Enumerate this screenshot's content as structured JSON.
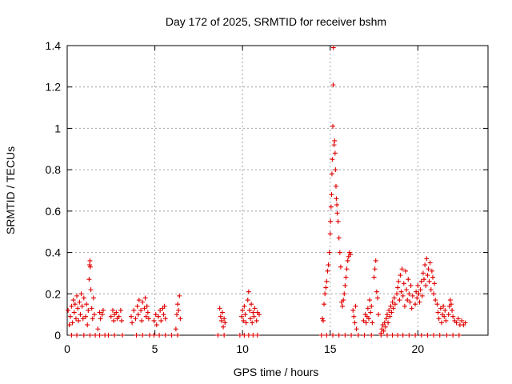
{
  "chart_data": {
    "type": "scatter",
    "title": "Day 172 of 2025, SRMTID for receiver bshm",
    "xlabel": "GPS time / hours",
    "ylabel": "SRMTID / TECUs",
    "xlim": [
      0,
      24
    ],
    "ylim": [
      0,
      1.4
    ],
    "xticks": [
      0,
      5,
      10,
      15,
      20
    ],
    "yticks": [
      0,
      0.2,
      0.4,
      0.6,
      0.8,
      1.0,
      1.2,
      1.4
    ],
    "xtick_labels": [
      "0",
      "5",
      "10",
      "15",
      "20"
    ],
    "ytick_labels": [
      "0",
      "0.2",
      "0.4",
      "0.6",
      "0.8",
      "1",
      "1.2",
      "1.4"
    ],
    "grid": true,
    "marker": "plus",
    "color": "#e00000",
    "series": [
      {
        "name": "SRMTID",
        "points": [
          [
            0.05,
            0.12
          ],
          [
            0.12,
            0.05
          ],
          [
            0.18,
            0.09
          ],
          [
            0.25,
            0.14
          ],
          [
            0.3,
            0.06
          ],
          [
            0.35,
            0.17
          ],
          [
            0.4,
            0.11
          ],
          [
            0.45,
            0.15
          ],
          [
            0.5,
            0.08
          ],
          [
            0.55,
            0.19
          ],
          [
            0.6,
            0.13
          ],
          [
            0.65,
            0.07
          ],
          [
            0.7,
            0.16
          ],
          [
            0.75,
            0.1
          ],
          [
            0.8,
            0.2
          ],
          [
            0.85,
            0.14
          ],
          [
            0.9,
            0.08
          ],
          [
            0.95,
            0.18
          ],
          [
            1.05,
            0.09
          ],
          [
            1.1,
            0.15
          ],
          [
            1.15,
            0.05
          ],
          [
            1.2,
            0.12
          ],
          [
            1.25,
            0.27
          ],
          [
            1.28,
            0.34
          ],
          [
            1.3,
            0.36
          ],
          [
            1.32,
            0.33
          ],
          [
            1.35,
            0.22
          ],
          [
            1.4,
            0.13
          ],
          [
            1.45,
            0.08
          ],
          [
            1.5,
            0.18
          ],
          [
            1.55,
            0.1
          ],
          [
            1.75,
            0.03
          ],
          [
            1.85,
            0.11
          ],
          [
            1.9,
            0.08
          ],
          [
            2.0,
            0.1
          ],
          [
            2.05,
            0.12
          ],
          [
            2.5,
            0.09
          ],
          [
            2.6,
            0.12
          ],
          [
            2.65,
            0.07
          ],
          [
            2.7,
            0.1
          ],
          [
            2.8,
            0.11
          ],
          [
            2.85,
            0.08
          ],
          [
            2.95,
            0.09
          ],
          [
            3.05,
            0.12
          ],
          [
            3.1,
            0.07
          ],
          [
            3.65,
            0.09
          ],
          [
            3.7,
            0.06
          ],
          [
            3.8,
            0.12
          ],
          [
            3.9,
            0.08
          ],
          [
            4.0,
            0.14
          ],
          [
            4.05,
            0.1
          ],
          [
            4.1,
            0.17
          ],
          [
            4.2,
            0.12
          ],
          [
            4.25,
            0.07
          ],
          [
            4.3,
            0.16
          ],
          [
            4.4,
            0.13
          ],
          [
            4.45,
            0.18
          ],
          [
            4.5,
            0.09
          ],
          [
            4.55,
            0.14
          ],
          [
            4.6,
            0.11
          ],
          [
            4.65,
            0.08
          ],
          [
            4.95,
            0.07
          ],
          [
            5.05,
            0.1
          ],
          [
            5.1,
            0.05
          ],
          [
            5.2,
            0.09
          ],
          [
            5.3,
            0.12
          ],
          [
            5.35,
            0.07
          ],
          [
            5.45,
            0.13
          ],
          [
            5.5,
            0.1
          ],
          [
            5.55,
            0.14
          ],
          [
            5.6,
            0.08
          ],
          [
            6.2,
            0.03
          ],
          [
            6.25,
            0.1
          ],
          [
            6.3,
            0.15
          ],
          [
            6.35,
            0.12
          ],
          [
            6.4,
            0.19
          ],
          [
            6.45,
            0.08
          ],
          [
            8.7,
            0.13
          ],
          [
            8.75,
            0.09
          ],
          [
            8.8,
            0.07
          ],
          [
            8.85,
            0.11
          ],
          [
            8.9,
            0.04
          ],
          [
            8.95,
            0.08
          ],
          [
            9.0,
            0.06
          ],
          [
            9.95,
            0.09
          ],
          [
            10.0,
            0.12
          ],
          [
            10.05,
            0.07
          ],
          [
            10.1,
            0.14
          ],
          [
            10.15,
            0.1
          ],
          [
            10.2,
            0.06
          ],
          [
            10.3,
            0.17
          ],
          [
            10.35,
            0.21
          ],
          [
            10.4,
            0.12
          ],
          [
            10.45,
            0.08
          ],
          [
            10.5,
            0.15
          ],
          [
            10.55,
            0.06
          ],
          [
            10.6,
            0.11
          ],
          [
            10.65,
            0.09
          ],
          [
            10.7,
            0.13
          ],
          [
            10.8,
            0.07
          ],
          [
            10.85,
            0.11
          ],
          [
            10.95,
            0.1
          ],
          [
            14.55,
            0.08
          ],
          [
            14.6,
            0.07
          ],
          [
            14.65,
            0.15
          ],
          [
            14.7,
            0.2
          ],
          [
            14.75,
            0.23
          ],
          [
            14.8,
            0.26
          ],
          [
            14.85,
            0.31
          ],
          [
            14.9,
            0.34
          ],
          [
            14.95,
            0.4
          ],
          [
            15.0,
            0.49
          ],
          [
            15.02,
            0.55
          ],
          [
            15.05,
            0.62
          ],
          [
            15.08,
            0.68
          ],
          [
            15.1,
            0.78
          ],
          [
            15.12,
            0.85
          ],
          [
            15.15,
            1.01
          ],
          [
            15.17,
            1.21
          ],
          [
            15.18,
            1.39
          ],
          [
            15.22,
            0.92
          ],
          [
            15.25,
            0.94
          ],
          [
            15.28,
            0.88
          ],
          [
            15.3,
            0.8
          ],
          [
            15.33,
            0.72
          ],
          [
            15.35,
            0.66
          ],
          [
            15.38,
            0.63
          ],
          [
            15.4,
            0.59
          ],
          [
            15.45,
            0.55
          ],
          [
            15.5,
            0.47
          ],
          [
            15.55,
            0.4
          ],
          [
            15.6,
            0.33
          ],
          [
            15.65,
            0.16
          ],
          [
            15.7,
            0.14
          ],
          [
            15.75,
            0.17
          ],
          [
            15.8,
            0.2
          ],
          [
            15.85,
            0.24
          ],
          [
            15.9,
            0.28
          ],
          [
            15.95,
            0.32
          ],
          [
            16.0,
            0.36
          ],
          [
            16.05,
            0.38
          ],
          [
            16.1,
            0.4
          ],
          [
            16.15,
            0.39
          ],
          [
            16.3,
            0.12
          ],
          [
            16.35,
            0.09
          ],
          [
            16.4,
            0.06
          ],
          [
            16.45,
            0.14
          ],
          [
            16.5,
            0.03
          ],
          [
            16.9,
            0.07
          ],
          [
            17.0,
            0.1
          ],
          [
            17.05,
            0.06
          ],
          [
            17.1,
            0.09
          ],
          [
            17.15,
            0.13
          ],
          [
            17.2,
            0.08
          ],
          [
            17.25,
            0.17
          ],
          [
            17.3,
            0.11
          ],
          [
            17.35,
            0.14
          ],
          [
            17.4,
            0.06
          ],
          [
            17.5,
            0.28
          ],
          [
            17.55,
            0.32
          ],
          [
            17.6,
            0.36
          ],
          [
            17.65,
            0.21
          ],
          [
            17.7,
            0.18
          ],
          [
            17.75,
            0.1
          ],
          [
            17.9,
            0.01
          ],
          [
            17.95,
            0.03
          ],
          [
            18.0,
            0.05
          ],
          [
            18.05,
            0.02
          ],
          [
            18.1,
            0.06
          ],
          [
            18.15,
            0.04
          ],
          [
            18.2,
            0.08
          ],
          [
            18.25,
            0.1
          ],
          [
            18.3,
            0.06
          ],
          [
            18.35,
            0.12
          ],
          [
            18.4,
            0.09
          ],
          [
            18.45,
            0.14
          ],
          [
            18.5,
            0.11
          ],
          [
            18.55,
            0.16
          ],
          [
            18.6,
            0.13
          ],
          [
            18.65,
            0.18
          ],
          [
            18.7,
            0.15
          ],
          [
            18.8,
            0.2
          ],
          [
            18.85,
            0.23
          ],
          [
            18.9,
            0.26
          ],
          [
            18.95,
            0.17
          ],
          [
            19.0,
            0.29
          ],
          [
            19.05,
            0.21
          ],
          [
            19.1,
            0.32
          ],
          [
            19.15,
            0.19
          ],
          [
            19.2,
            0.25
          ],
          [
            19.25,
            0.14
          ],
          [
            19.3,
            0.31
          ],
          [
            19.35,
            0.22
          ],
          [
            19.4,
            0.17
          ],
          [
            19.45,
            0.27
          ],
          [
            19.5,
            0.2
          ],
          [
            19.55,
            0.16
          ],
          [
            19.6,
            0.24
          ],
          [
            19.65,
            0.13
          ],
          [
            19.7,
            0.19
          ],
          [
            19.85,
            0.15
          ],
          [
            19.9,
            0.21
          ],
          [
            19.95,
            0.18
          ],
          [
            20.0,
            0.24
          ],
          [
            20.05,
            0.2
          ],
          [
            20.1,
            0.16
          ],
          [
            20.15,
            0.22
          ],
          [
            20.2,
            0.26
          ],
          [
            20.25,
            0.19
          ],
          [
            20.3,
            0.3
          ],
          [
            20.35,
            0.27
          ],
          [
            20.4,
            0.34
          ],
          [
            20.45,
            0.24
          ],
          [
            20.5,
            0.37
          ],
          [
            20.55,
            0.29
          ],
          [
            20.6,
            0.32
          ],
          [
            20.65,
            0.26
          ],
          [
            20.7,
            0.35
          ],
          [
            20.75,
            0.22
          ],
          [
            20.8,
            0.31
          ],
          [
            20.85,
            0.28
          ],
          [
            20.9,
            0.2
          ],
          [
            20.95,
            0.25
          ],
          [
            21.0,
            0.17
          ],
          [
            21.1,
            0.15
          ],
          [
            21.15,
            0.11
          ],
          [
            21.2,
            0.08
          ],
          [
            21.3,
            0.13
          ],
          [
            21.35,
            0.06
          ],
          [
            21.4,
            0.1
          ],
          [
            21.45,
            0.14
          ],
          [
            21.5,
            0.09
          ],
          [
            21.55,
            0.12
          ],
          [
            21.6,
            0.07
          ],
          [
            21.75,
            0.1
          ],
          [
            21.8,
            0.14
          ],
          [
            21.85,
            0.17
          ],
          [
            21.9,
            0.15
          ],
          [
            21.95,
            0.12
          ],
          [
            22.0,
            0.09
          ],
          [
            22.1,
            0.07
          ],
          [
            22.2,
            0.06
          ],
          [
            22.3,
            0.08
          ],
          [
            22.4,
            0.05
          ],
          [
            22.5,
            0.07
          ],
          [
            22.6,
            0.05
          ],
          [
            22.7,
            0.06
          ]
        ],
        "zero_points": [
          0.25,
          0.55,
          0.95,
          1.3,
          1.6,
          1.85,
          2.15,
          2.35,
          2.7,
          3.15,
          3.95,
          4.3,
          4.7,
          4.95,
          5.25,
          5.6,
          5.95,
          6.3,
          8.6,
          8.95,
          9.85,
          10.1,
          10.35,
          10.6,
          10.85,
          14.5,
          14.8,
          15.15,
          15.5,
          15.85,
          16.2,
          16.6,
          16.95,
          17.35,
          17.9,
          18.25,
          18.55,
          18.85,
          19.15,
          19.5,
          19.85,
          20.2,
          20.55,
          20.9,
          21.25,
          21.65,
          22.0,
          22.35
        ]
      }
    ]
  }
}
